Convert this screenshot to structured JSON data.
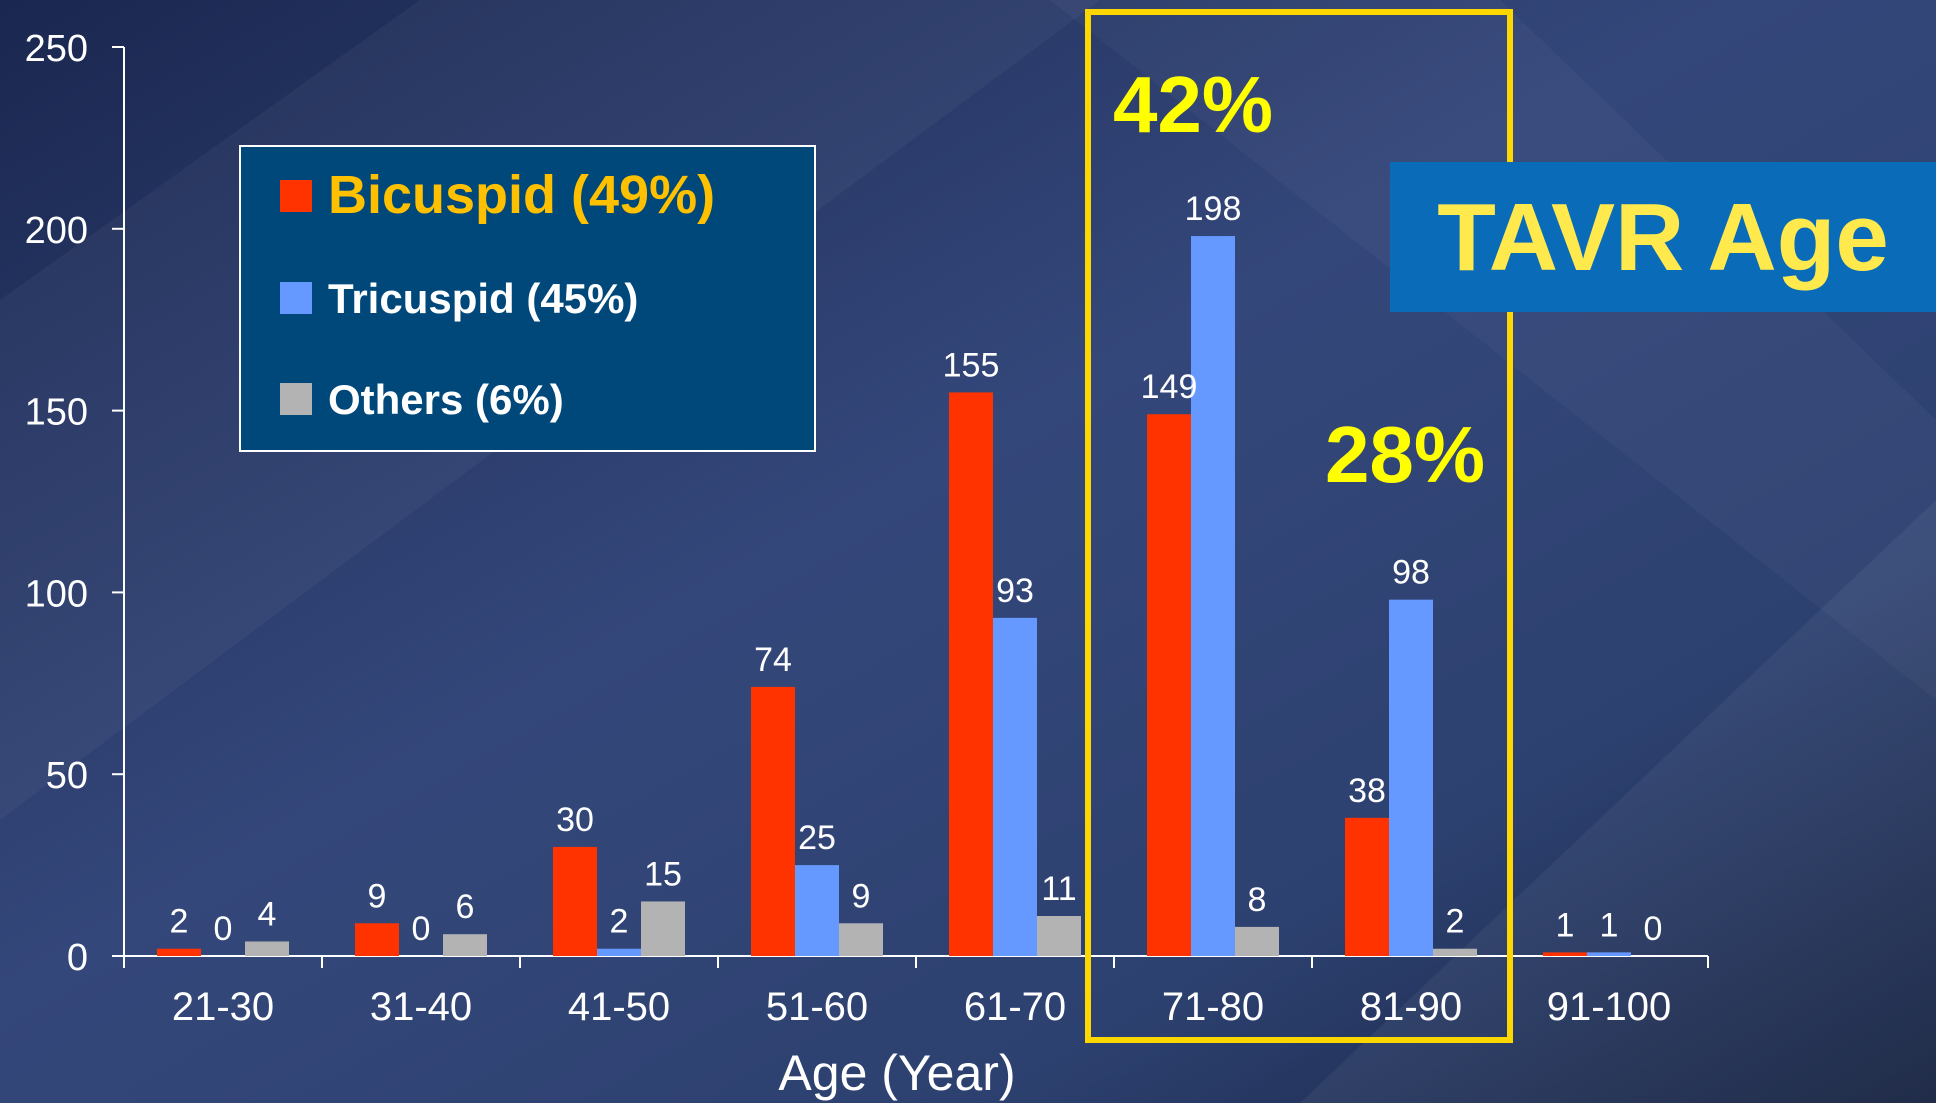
{
  "chart_data": {
    "type": "bar",
    "categories": [
      "21-30",
      "31-40",
      "41-50",
      "51-60",
      "61-70",
      "71-80",
      "81-90",
      "91-100"
    ],
    "series": [
      {
        "name": "Bicuspid (49%)",
        "values": [
          2,
          9,
          30,
          74,
          155,
          149,
          38,
          1
        ],
        "color": "#ff3300"
      },
      {
        "name": "Tricuspid (45%)",
        "values": [
          0,
          0,
          2,
          25,
          93,
          198,
          98,
          1
        ],
        "color": "#6699ff"
      },
      {
        "name": "Others (6%)",
        "values": [
          4,
          6,
          15,
          9,
          11,
          8,
          2,
          0
        ],
        "color": "#b3b3b3"
      }
    ],
    "data_labels": [
      [
        "2",
        "0",
        "4"
      ],
      [
        "9",
        "0",
        "6"
      ],
      [
        "30",
        "2",
        "15"
      ],
      [
        "74",
        "25",
        "9"
      ],
      [
        "155",
        "93",
        "11"
      ],
      [
        "149",
        "198",
        "8"
      ],
      [
        "38",
        "98",
        "2"
      ],
      [
        "1",
        "1",
        "0"
      ]
    ],
    "xlabel": "Age (Year)",
    "ylabel": "",
    "ylim": [
      0,
      250
    ],
    "yticks": [
      "0",
      "50",
      "100",
      "150",
      "200",
      "250"
    ],
    "grid": false,
    "legend": {
      "placement": "top-left",
      "label_colors": [
        "#ffc000",
        "#ffffff",
        "#ffffff"
      ]
    },
    "annotations": {
      "highlight_range": [
        "71-80",
        "81-90"
      ],
      "highlight_color": "#ffd700",
      "pct_71_80": "42%",
      "pct_81_90": "28%",
      "pct_color": "#ffff00",
      "tavr_label": "TAVR Age",
      "tavr_box_color": "#0a6cb8",
      "tavr_text_color": "#ffe94d"
    },
    "text_color": "#ffffff",
    "background_color": "#1b2a52"
  }
}
